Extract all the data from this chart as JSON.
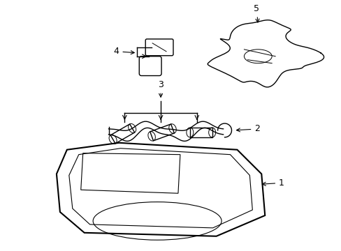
{
  "bg_color": "#ffffff",
  "line_color": "#000000",
  "lw": 1.0,
  "fig_width": 4.89,
  "fig_height": 3.6,
  "dpi": 100
}
